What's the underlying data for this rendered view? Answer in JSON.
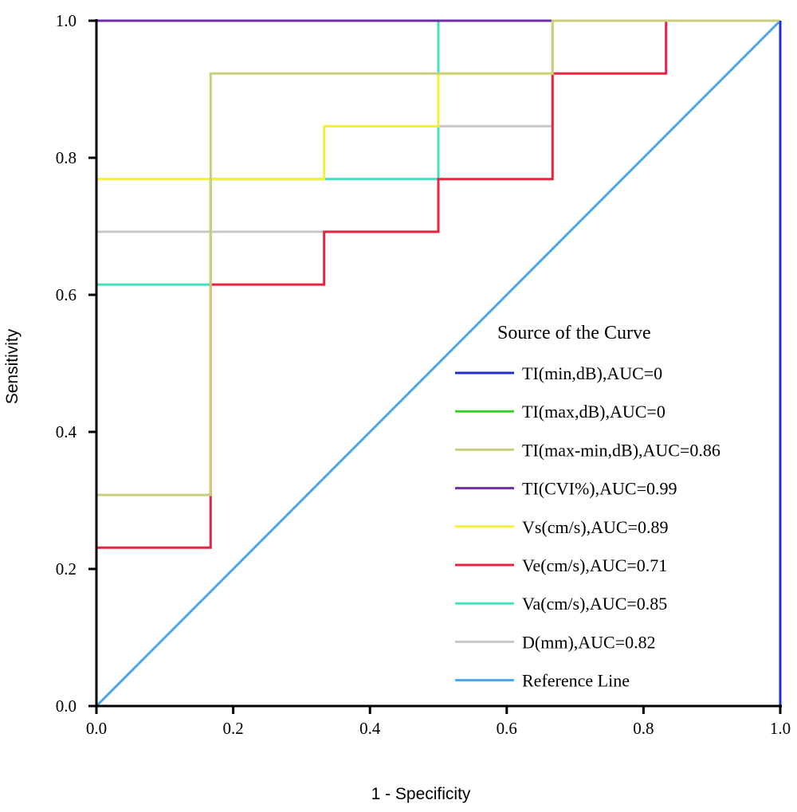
{
  "chart_data": {
    "type": "line",
    "xlabel": "1 - Specificity",
    "ylabel": "Sensitivity",
    "xlim": [
      0,
      1
    ],
    "ylim": [
      0,
      1
    ],
    "x_ticks": [
      "0.0",
      "0.2",
      "0.4",
      "0.6",
      "0.8",
      "1.0"
    ],
    "y_ticks": [
      "0.0",
      "0.2",
      "0.4",
      "0.6",
      "0.8",
      "1.0"
    ],
    "grid": false,
    "legend_placement": "bottom-right",
    "legend_title": "Source of the Curve",
    "series": [
      {
        "name": "TI(min,dB),AUC=0",
        "color": "#1f2ecf",
        "x": [
          0,
          1,
          1
        ],
        "y": [
          0,
          0,
          1
        ]
      },
      {
        "name": "TI(max,dB),AUC=0",
        "color": "#38d12c",
        "x": [
          0,
          1,
          1
        ],
        "y": [
          0,
          0,
          1
        ]
      },
      {
        "name": "TI(max-min,dB),AUC=0.86",
        "color": "#c9cf7d",
        "x": [
          0,
          0,
          0.167,
          0.167,
          0.5,
          0.5,
          0.667,
          0.667,
          1
        ],
        "y": [
          0,
          0.308,
          0.308,
          0.923,
          0.923,
          0.923,
          0.923,
          1,
          1
        ]
      },
      {
        "name": "TI(CVI%),AUC=0.99",
        "color": "#6a2fa8",
        "x": [
          0,
          0,
          0,
          1
        ],
        "y": [
          0,
          0.769,
          1,
          1
        ]
      },
      {
        "name": "Vs(cm/s),AUC=0.89",
        "color": "#f4ef3a",
        "x": [
          0,
          0,
          0.333,
          0.333,
          0.5,
          0.5,
          0.667,
          0.667,
          1
        ],
        "y": [
          0.692,
          0.769,
          0.769,
          0.846,
          0.846,
          0.923,
          0.923,
          1,
          1
        ]
      },
      {
        "name": "Ve(cm/s),AUC=0.71",
        "color": "#e8233f",
        "x": [
          0,
          0,
          0.167,
          0.167,
          0.333,
          0.333,
          0.5,
          0.5,
          0.667,
          0.667,
          0.833,
          0.833,
          1
        ],
        "y": [
          0.231,
          0.231,
          0.231,
          0.615,
          0.615,
          0.692,
          0.692,
          0.769,
          0.769,
          0.923,
          0.923,
          1,
          1
        ]
      },
      {
        "name": "Va(cm/s),AUC=0.85",
        "color": "#45e0bf",
        "x": [
          0,
          0,
          0.167,
          0.167,
          0.5,
          0.5,
          1
        ],
        "y": [
          0.308,
          0.615,
          0.615,
          0.769,
          0.769,
          1,
          1
        ]
      },
      {
        "name": "D(mm),AUC=0.82",
        "color": "#c8c8c8",
        "x": [
          0,
          0,
          0.5,
          0.5,
          0.667,
          0.667,
          1
        ],
        "y": [
          0,
          0.692,
          0.692,
          0.846,
          0.846,
          1,
          1
        ]
      },
      {
        "name": "Reference Line",
        "color": "#4da6e8",
        "x": [
          0,
          1
        ],
        "y": [
          0,
          1
        ]
      }
    ]
  }
}
